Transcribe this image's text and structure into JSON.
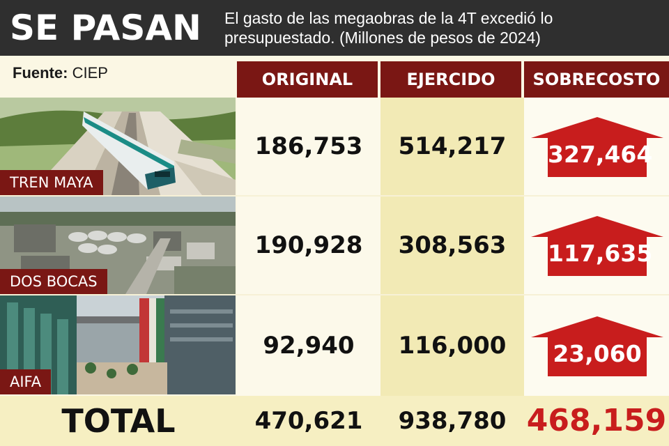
{
  "header": {
    "headline": "SE PASAN",
    "subtitle": "El gasto de las megaobras de la 4T excedió lo presupuestado. (Millones de pesos de 2024)"
  },
  "source": {
    "label": "Fuente:",
    "value": "CIEP"
  },
  "columns": {
    "original": "ORIGINAL",
    "ejercido": "EJERCIDO",
    "sobrecosto": "SOBRECOSTO"
  },
  "projects": [
    {
      "name": "TREN MAYA",
      "original": "186,753",
      "ejercido": "514,217",
      "sobrecosto": "327,464"
    },
    {
      "name": "DOS BOCAS",
      "original": "190,928",
      "ejercido": "308,563",
      "sobrecosto": "117,635"
    },
    {
      "name": "AIFA",
      "original": "92,940",
      "ejercido": "116,000",
      "sobrecosto": "23,060"
    }
  ],
  "total": {
    "label": "TOTAL",
    "original": "470,621",
    "ejercido": "938,780",
    "sobrecosto": "468,159"
  },
  "colors": {
    "header_bg": "#2f2f2f",
    "label_bg": "#7a1714",
    "arrow": "#c81d1d",
    "total_highlight": "#c81d1d"
  },
  "chart_data": {
    "type": "table",
    "title": "SE PASAN",
    "subtitle": "El gasto de las megaobras de la 4T excedió lo presupuestado. (Millones de pesos de 2024)",
    "columns": [
      "ORIGINAL",
      "EJERCIDO",
      "SOBRECOSTO"
    ],
    "rows": [
      {
        "label": "TREN MAYA",
        "values": [
          186753,
          514217,
          327464
        ]
      },
      {
        "label": "DOS BOCAS",
        "values": [
          190928,
          308563,
          117635
        ]
      },
      {
        "label": "AIFA",
        "values": [
          92940,
          116000,
          23060
        ]
      }
    ],
    "total": {
      "label": "TOTAL",
      "values": [
        470621,
        938780,
        468159
      ]
    },
    "source": "CIEP"
  }
}
